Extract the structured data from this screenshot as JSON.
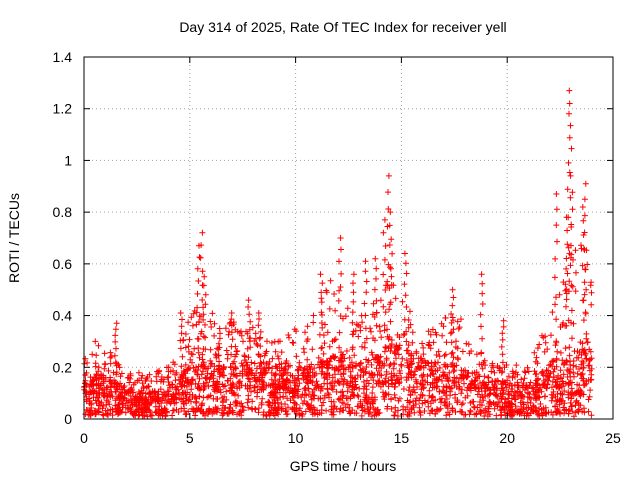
{
  "chart_data": {
    "type": "scatter",
    "title": "Day 314 of 2025, Rate Of TEC Index for receiver yell",
    "xlabel": "GPS time / hours",
    "ylabel": "ROTI / TECUs",
    "xlim": [
      0,
      25
    ],
    "ylim": [
      0,
      1.4
    ],
    "x_ticks": [
      0,
      5,
      10,
      15,
      20,
      25
    ],
    "x_tick_labels": [
      "0",
      "5",
      "10",
      "15",
      "20",
      "25"
    ],
    "y_ticks": [
      0,
      0.2,
      0.4,
      0.6,
      0.8,
      1.0,
      1.2,
      1.4
    ],
    "y_tick_labels": [
      "0",
      "0.2",
      "0.4",
      "0.6",
      "0.8",
      "1",
      "1.2",
      "1.4"
    ],
    "grid": true,
    "marker": "plus",
    "series": [
      {
        "name": "ROTI",
        "color": "#ff0000",
        "envelope": {
          "x": [
            0,
            0.5,
            1,
            1.5,
            2,
            2.5,
            3,
            3.5,
            4,
            4.5,
            5,
            5.5,
            6,
            6.5,
            7,
            7.5,
            8,
            8.5,
            9,
            9.5,
            10,
            10.5,
            11,
            11.5,
            12,
            12.5,
            13,
            13.5,
            14,
            14.5,
            15,
            15.5,
            16,
            16.5,
            17,
            17.5,
            18,
            18.5,
            19,
            19.5,
            20,
            20.5,
            21,
            21.5,
            22,
            22.5,
            23,
            23.5,
            24
          ],
          "median": [
            0.09,
            0.1,
            0.09,
            0.08,
            0.07,
            0.06,
            0.06,
            0.06,
            0.07,
            0.09,
            0.11,
            0.12,
            0.12,
            0.11,
            0.11,
            0.12,
            0.12,
            0.11,
            0.11,
            0.12,
            0.11,
            0.11,
            0.12,
            0.13,
            0.14,
            0.13,
            0.12,
            0.13,
            0.14,
            0.15,
            0.17,
            0.15,
            0.13,
            0.12,
            0.12,
            0.12,
            0.11,
            0.1,
            0.09,
            0.08,
            0.08,
            0.07,
            0.08,
            0.1,
            0.12,
            0.13,
            0.14,
            0.15,
            0.14
          ],
          "upper": [
            0.3,
            0.31,
            0.28,
            0.25,
            0.2,
            0.18,
            0.18,
            0.19,
            0.21,
            0.27,
            0.4,
            0.45,
            0.42,
            0.36,
            0.38,
            0.38,
            0.36,
            0.32,
            0.3,
            0.33,
            0.35,
            0.36,
            0.45,
            0.55,
            0.55,
            0.42,
            0.4,
            0.42,
            0.5,
            0.6,
            0.55,
            0.4,
            0.36,
            0.35,
            0.38,
            0.45,
            0.35,
            0.3,
            0.27,
            0.25,
            0.23,
            0.21,
            0.24,
            0.3,
            0.4,
            0.5,
            0.65,
            0.7,
            0.6
          ]
        },
        "spikes": [
          {
            "x": 1.5,
            "y": 0.37
          },
          {
            "x": 4.6,
            "y": 0.41
          },
          {
            "x": 5.4,
            "y": 0.67
          },
          {
            "x": 5.55,
            "y": 0.72
          },
          {
            "x": 5.7,
            "y": 0.55
          },
          {
            "x": 6.4,
            "y": 0.35
          },
          {
            "x": 7.0,
            "y": 0.41
          },
          {
            "x": 7.8,
            "y": 0.46
          },
          {
            "x": 8.3,
            "y": 0.41
          },
          {
            "x": 11.2,
            "y": 0.56
          },
          {
            "x": 12.1,
            "y": 0.7
          },
          {
            "x": 12.7,
            "y": 0.56
          },
          {
            "x": 13.3,
            "y": 0.61
          },
          {
            "x": 13.8,
            "y": 0.62
          },
          {
            "x": 14.2,
            "y": 0.77
          },
          {
            "x": 14.4,
            "y": 0.94
          },
          {
            "x": 14.5,
            "y": 0.8
          },
          {
            "x": 15.2,
            "y": 0.64
          },
          {
            "x": 17.4,
            "y": 0.5
          },
          {
            "x": 18.8,
            "y": 0.56
          },
          {
            "x": 19.8,
            "y": 0.38
          },
          {
            "x": 22.3,
            "y": 0.87
          },
          {
            "x": 22.8,
            "y": 0.78
          },
          {
            "x": 22.9,
            "y": 1.27
          },
          {
            "x": 23.0,
            "y": 1.22
          },
          {
            "x": 23.05,
            "y": 0.94
          },
          {
            "x": 23.6,
            "y": 0.82
          },
          {
            "x": 23.7,
            "y": 0.91
          }
        ]
      }
    ]
  }
}
